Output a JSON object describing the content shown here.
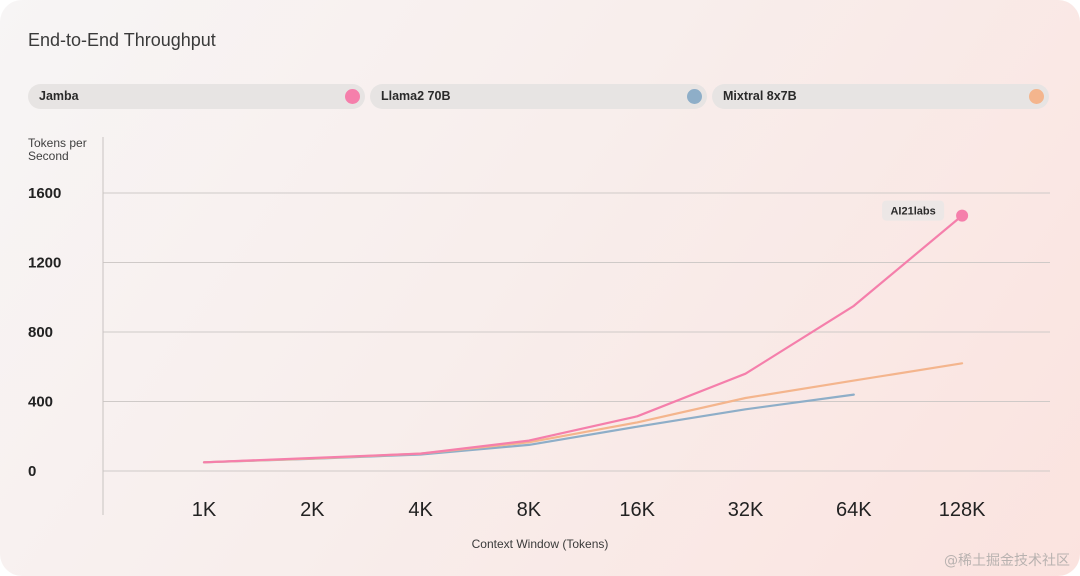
{
  "chart_data": {
    "type": "line",
    "title": "End-to-End Throughput",
    "xlabel": "Context Window (Tokens)",
    "ylabel": [
      "Tokens per",
      "Second"
    ],
    "categories": [
      "1K",
      "2K",
      "4K",
      "8K",
      "16K",
      "32K",
      "64K",
      "128K"
    ],
    "yticks": [
      0,
      400,
      800,
      1200,
      1600
    ],
    "ylim": [
      0,
      1600
    ],
    "grid": true,
    "legend_position": "top",
    "series": [
      {
        "name": "Jamba",
        "color": "#f57fab",
        "x": [
          0,
          1,
          2,
          3,
          4,
          5,
          6,
          7
        ],
        "values": [
          50,
          75,
          100,
          175,
          315,
          560,
          950,
          1470
        ],
        "end_marker": true
      },
      {
        "name": "Llama2 70B",
        "color": "#8eaec8",
        "x": [
          0,
          1,
          2,
          3,
          4,
          5,
          6
        ],
        "values": [
          50,
          70,
          95,
          150,
          255,
          355,
          440
        ]
      },
      {
        "name": "Mixtral 8x7B",
        "color": "#f4b58d",
        "x": [
          0,
          1,
          2,
          3,
          4,
          5,
          6,
          7
        ],
        "values": [
          50,
          72,
          100,
          165,
          280,
          420,
          520,
          620
        ]
      }
    ],
    "annotation": {
      "text": "AI21labs",
      "series": "Jamba"
    }
  },
  "watermark": "@稀土掘金技术社区"
}
